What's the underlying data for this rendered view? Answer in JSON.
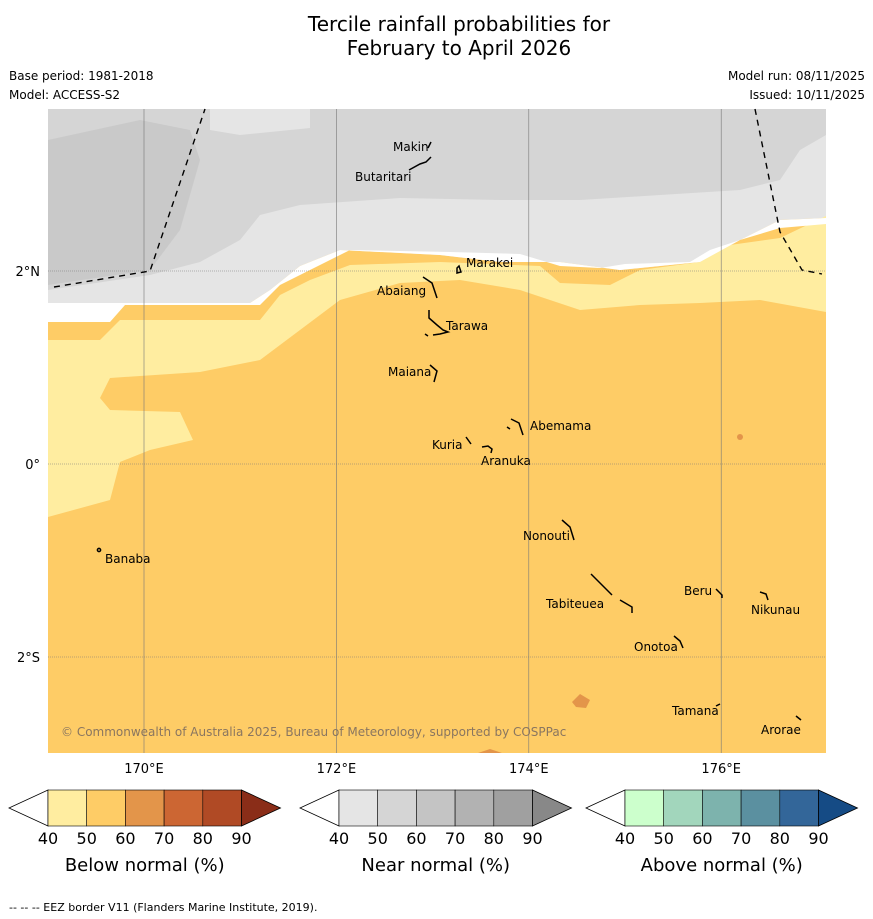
{
  "title_line1": "Tercile rainfall probabilities for",
  "title_line2": "February to April 2026",
  "base_period": "Base period: 1981-2018",
  "model": "Model: ACCESS-S2",
  "model_run": "Model run: 08/11/2025",
  "issued": "Issued: 10/11/2025",
  "copyright": "© Commonwealth of Australia 2025, Bureau of Meteorology, supported by COSPPac",
  "footnote": "--  --  -- EEZ border V11 (Flanders Marine Institute, 2019).",
  "axes": {
    "lon_ticks": [
      {
        "value": 170,
        "label": "170°E"
      },
      {
        "value": 172,
        "label": "172°E"
      },
      {
        "value": 174,
        "label": "174°E"
      },
      {
        "value": 176,
        "label": "176°E"
      }
    ],
    "lat_ticks": [
      {
        "value": 2,
        "label": "2°N"
      },
      {
        "value": 0,
        "label": "0°"
      },
      {
        "value": -2,
        "label": "2°S"
      }
    ],
    "lon_range": [
      169,
      177.1
    ],
    "lat_range": [
      -3.0,
      3.7
    ]
  },
  "islands": [
    {
      "name": "Makin",
      "lon": 173.0,
      "lat": 3.3
    },
    {
      "name": "Butaritari",
      "lon": 172.8,
      "lat": 3.05
    },
    {
      "name": "Marakei",
      "lon": 173.3,
      "lat": 2.0
    },
    {
      "name": "Abaiang",
      "lon": 172.9,
      "lat": 1.8
    },
    {
      "name": "Tarawa",
      "lon": 173.0,
      "lat": 1.45
    },
    {
      "name": "Maiana",
      "lon": 173.0,
      "lat": 0.95
    },
    {
      "name": "Abemama",
      "lon": 173.85,
      "lat": 0.4
    },
    {
      "name": "Kuria",
      "lon": 173.4,
      "lat": 0.22
    },
    {
      "name": "Aranuka",
      "lon": 173.6,
      "lat": 0.15
    },
    {
      "name": "Banaba",
      "lon": 169.55,
      "lat": -0.87
    },
    {
      "name": "Nonouti",
      "lon": 174.4,
      "lat": -0.65
    },
    {
      "name": "Tabiteuea",
      "lon": 174.9,
      "lat": -1.3
    },
    {
      "name": "Beru",
      "lon": 176.0,
      "lat": -1.33
    },
    {
      "name": "Nikunau",
      "lon": 176.45,
      "lat": -1.35
    },
    {
      "name": "Onotoa",
      "lon": 175.55,
      "lat": -1.8
    },
    {
      "name": "Tamana",
      "lon": 175.98,
      "lat": -2.5
    },
    {
      "name": "Arorae",
      "lon": 176.82,
      "lat": -2.64
    }
  ],
  "colorbars": [
    {
      "label": "Below normal (%)",
      "ticks": [
        "40",
        "50",
        "60",
        "70",
        "80",
        "90"
      ],
      "colors": [
        "#ffeda0",
        "#fecc66",
        "#e3954a",
        "#cc6633",
        "#b04a25",
        "#8a2d18"
      ]
    },
    {
      "label": "Near normal (%)",
      "ticks": [
        "40",
        "50",
        "60",
        "70",
        "80",
        "90"
      ],
      "colors": [
        "#e5e5e5",
        "#d5d5d5",
        "#c4c4c4",
        "#b2b2b2",
        "#a0a0a0",
        "#888888"
      ]
    },
    {
      "label": "Above normal (%)",
      "ticks": [
        "40",
        "50",
        "60",
        "70",
        "80",
        "90"
      ],
      "colors": [
        "#ccffcc",
        "#a2d6bc",
        "#7db3ad",
        "#5b90a0",
        "#336699",
        "#154b85"
      ]
    }
  ]
}
